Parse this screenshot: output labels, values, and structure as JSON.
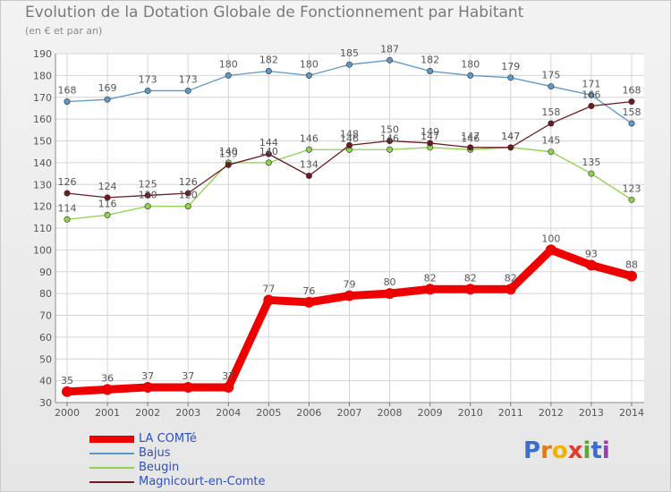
{
  "chart_data": {
    "type": "line",
    "title": "Evolution de la Dotation Globale de Fonctionnement par Habitant",
    "subtitle": "(en € et par an)",
    "xlabel": "",
    "ylabel": "",
    "x": [
      "2000",
      "2001",
      "2002",
      "2003",
      "2004",
      "2005",
      "2006",
      "2007",
      "2008",
      "2009",
      "2010",
      "2011",
      "2012",
      "2013",
      "2014"
    ],
    "ylim": [
      30,
      190
    ],
    "yticks": [
      30,
      40,
      50,
      60,
      70,
      80,
      90,
      100,
      110,
      120,
      130,
      140,
      150,
      160,
      170,
      180,
      190
    ],
    "grid": true,
    "legend_position": "bottom-left",
    "series": [
      {
        "name": "LA COMTé",
        "color": "#ee0000",
        "values": [
          35,
          36,
          37,
          37,
          37,
          77,
          76,
          79,
          80,
          82,
          82,
          82,
          100,
          93,
          88
        ]
      },
      {
        "name": "Bajus",
        "color": "#5d98c7",
        "values": [
          168,
          169,
          173,
          173,
          180,
          182,
          180,
          185,
          187,
          182,
          180,
          179,
          175,
          171,
          158
        ]
      },
      {
        "name": "Beugin",
        "color": "#8fd14f",
        "values": [
          114,
          116,
          120,
          120,
          140,
          140,
          146,
          146,
          146,
          147,
          146,
          147,
          145,
          135,
          123
        ]
      },
      {
        "name": "Magnicourt-en-Comte",
        "color": "#6b1c22",
        "values": [
          126,
          124,
          125,
          126,
          139,
          144,
          134,
          148,
          150,
          149,
          147,
          147,
          158,
          166,
          168
        ]
      }
    ]
  },
  "logo": {
    "text": "Proxiti",
    "letters": [
      "P",
      "r",
      "o",
      "x",
      "i",
      "t",
      "i"
    ],
    "colors": [
      "#3b6ec9",
      "#e07a1f",
      "#f0b400",
      "#e33b2e",
      "#5aa832",
      "#3b6ec9",
      "#9b3fb0"
    ]
  }
}
